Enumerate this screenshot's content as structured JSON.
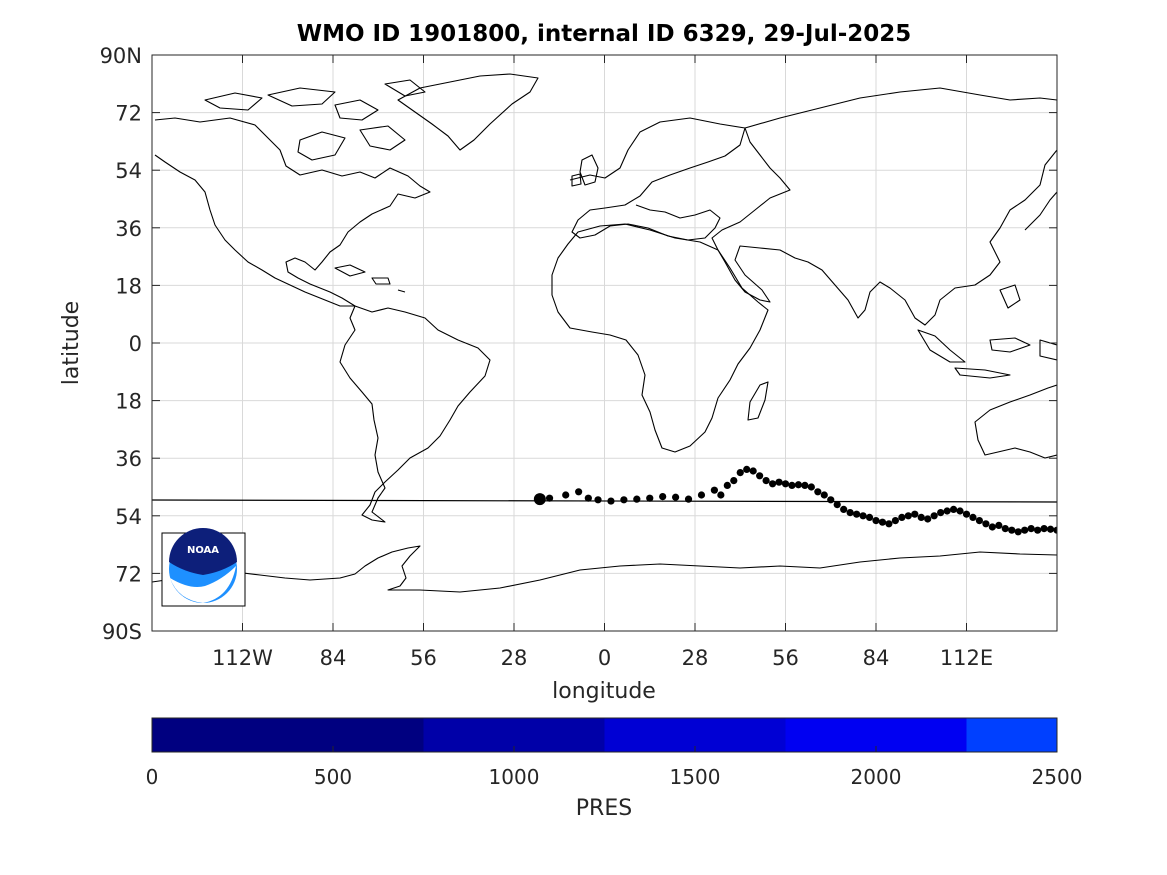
{
  "title": "WMO ID 1901800, internal ID 6329, 29-Jul-2025",
  "xlabel": "longitude",
  "ylabel": "latitude",
  "lat_ticks": [
    "90N",
    "72",
    "54",
    "36",
    "18",
    "0",
    "18",
    "36",
    "54",
    "72",
    "90S"
  ],
  "lon_ticks": [
    "112W",
    "84",
    "56",
    "28",
    "0",
    "28",
    "56",
    "84",
    "112E"
  ],
  "logo_text": "NOAA",
  "colorbar": {
    "label": "PRES",
    "ticks": [
      "0",
      "500",
      "1000",
      "1500",
      "2000",
      "2500"
    ],
    "range": [
      0,
      2500
    ],
    "colors": [
      "#000080",
      "#0000a8",
      "#0000d4",
      "#0000f2",
      "#0040ff"
    ]
  },
  "chart_data": {
    "type": "scatter",
    "title": "WMO ID 1901800, internal ID 6329, 29-Jul-2025",
    "xlabel": "longitude",
    "ylabel": "latitude",
    "xlim": [
      -140,
      140
    ],
    "ylim": [
      -90,
      90
    ],
    "grid": true,
    "reference_line_lat": -49.5,
    "series": [
      {
        "marker_color": "#000000",
        "x": [
          -20,
          -17,
          -12,
          -8,
          -5,
          -2,
          2,
          6,
          10,
          14,
          18,
          22,
          26,
          30,
          34,
          36,
          38,
          40,
          42,
          44,
          46,
          48,
          50,
          52,
          54,
          56,
          58,
          60,
          62,
          64,
          66,
          68,
          70,
          72,
          74,
          76,
          78,
          80,
          82,
          84,
          86,
          88,
          90,
          92,
          94,
          96,
          98,
          100,
          102,
          104,
          106,
          108,
          110,
          112,
          114,
          116,
          118,
          120,
          122,
          124,
          126,
          128,
          130,
          132,
          134,
          136,
          138,
          140
        ],
        "y": [
          -48.8,
          -48.5,
          -47.5,
          -46.5,
          -48.5,
          -49.0,
          -49.4,
          -49.0,
          -48.8,
          -48.5,
          -48.0,
          -48.2,
          -48.8,
          -47.5,
          -46.0,
          -47.5,
          -44.5,
          -43.0,
          -40.5,
          -39.5,
          -40.0,
          -41.5,
          -43.0,
          -44.0,
          -43.5,
          -44.0,
          -44.5,
          -44.3,
          -44.5,
          -45.0,
          -46.5,
          -47.5,
          -49.0,
          -50.5,
          -52.0,
          -53.0,
          -53.5,
          -54.0,
          -54.5,
          -55.5,
          -56.0,
          -56.5,
          -55.5,
          -54.5,
          -54.0,
          -53.5,
          -54.5,
          -55.0,
          -54.0,
          -53.0,
          -52.5,
          -52.0,
          -52.5,
          -53.5,
          -54.5,
          -55.5,
          -56.5,
          -57.5,
          -57.0,
          -58.0,
          -58.5,
          -59.0,
          -58.5,
          -58.0,
          -58.5,
          -58.0,
          -58.2,
          -58.5
        ]
      }
    ]
  }
}
